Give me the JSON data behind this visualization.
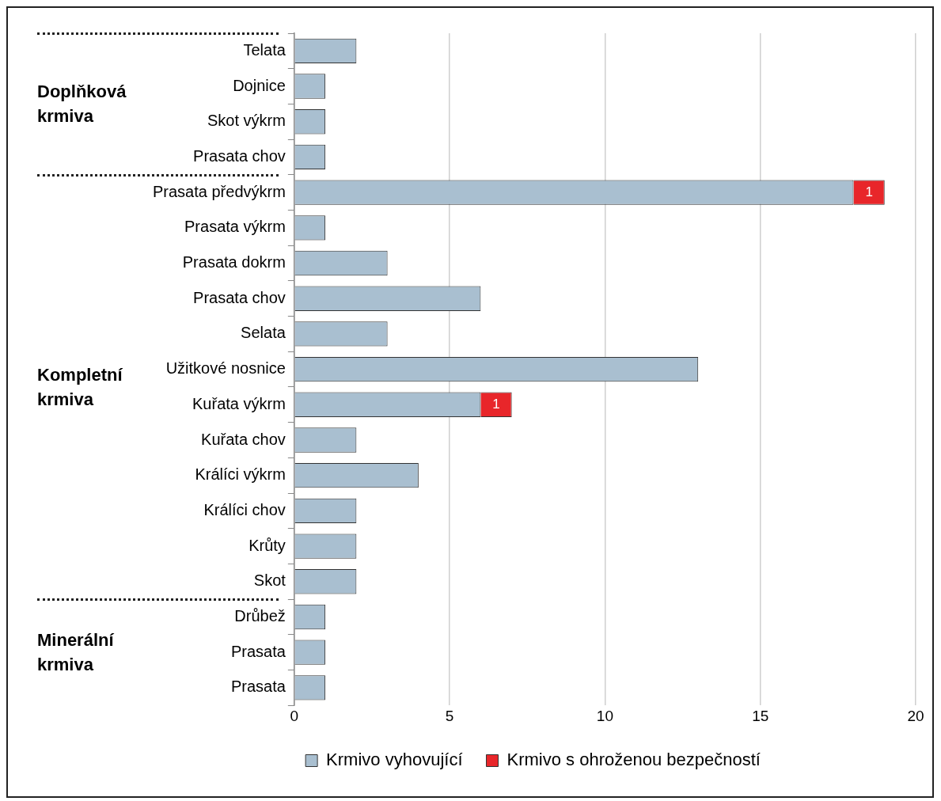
{
  "chart_data": {
    "type": "bar",
    "orientation": "horizontal",
    "stacked": true,
    "categories": [
      "Telata",
      "Dojnice",
      "Skot výkrm",
      "Prasata chov",
      "Prasata předvýkrm",
      "Prasata výkrm",
      "Prasata dokrm",
      "Prasata chov",
      "Selata",
      "Užitkové nosnice",
      "Kuřata výkrm",
      "Kuřata chov",
      "Králíci výkrm",
      "Králíci chov",
      "Krůty",
      "Skot",
      "Drůbež",
      "Prasata",
      "Prasata"
    ],
    "series": [
      {
        "name": "Krmivo vyhovující",
        "color": "#a9bfd0",
        "values": [
          2,
          1,
          1,
          1,
          18,
          1,
          3,
          6,
          3,
          13,
          6,
          2,
          4,
          2,
          2,
          2,
          1,
          1,
          1
        ]
      },
      {
        "name": "Krmivo s ohroženou bezpečností",
        "color": "#e8262a",
        "values": [
          null,
          null,
          null,
          null,
          1,
          null,
          null,
          null,
          null,
          null,
          1,
          null,
          null,
          null,
          null,
          null,
          null,
          null,
          null
        ],
        "value_labels": [
          null,
          null,
          null,
          null,
          "1",
          null,
          null,
          null,
          null,
          null,
          "1",
          null,
          null,
          null,
          null,
          null,
          null,
          null,
          null
        ]
      }
    ],
    "xlim": [
      0,
      20
    ],
    "xticks": [
      0,
      5,
      10,
      15,
      20
    ],
    "grid": "x",
    "legend": "bottom",
    "annotations": [
      "Doplňková krmiva",
      "Kompletní krmiva",
      "Minerální krmiva"
    ]
  }
}
